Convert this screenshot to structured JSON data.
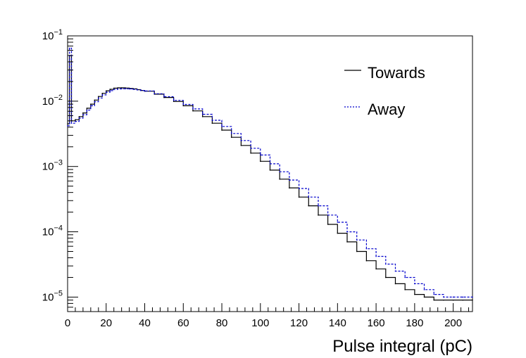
{
  "chart_data": {
    "type": "line",
    "title": "",
    "xlabel": "Pulse integral (pC)",
    "ylabel": "",
    "xlim": [
      0,
      210
    ],
    "ylim": [
      6e-06,
      0.1
    ],
    "yscale": "log",
    "grid": false,
    "legend": "top-right",
    "x_ticks": [
      0,
      20,
      40,
      60,
      80,
      100,
      120,
      140,
      160,
      180,
      200
    ],
    "y_ticks": [
      {
        "value": 1e-05,
        "base": "10",
        "exp": "−5"
      },
      {
        "value": 0.0001,
        "base": "10",
        "exp": "−4"
      },
      {
        "value": 0.001,
        "base": "10",
        "exp": "−3"
      },
      {
        "value": 0.01,
        "base": "10",
        "exp": "−2"
      },
      {
        "value": 0.1,
        "base": "10",
        "exp": "−1"
      }
    ],
    "series": [
      {
        "name": "Towards",
        "color": "#000000",
        "style": "solid",
        "x": [
          0,
          1,
          2,
          4,
          6,
          8,
          10,
          12,
          14,
          16,
          18,
          20,
          22,
          24,
          26,
          28,
          30,
          32,
          34,
          36,
          38,
          40,
          45,
          50,
          55,
          60,
          65,
          70,
          75,
          80,
          85,
          90,
          95,
          100,
          105,
          110,
          115,
          120,
          125,
          130,
          135,
          140,
          145,
          150,
          155,
          160,
          165,
          170,
          175,
          180,
          185,
          190,
          195,
          200,
          205,
          210
        ],
        "y": [
          0.0045,
          0.05,
          0.005,
          0.0052,
          0.0058,
          0.0066,
          0.0078,
          0.009,
          0.0104,
          0.0118,
          0.0132,
          0.0144,
          0.0152,
          0.0158,
          0.016,
          0.016,
          0.0159,
          0.0157,
          0.0154,
          0.015,
          0.0146,
          0.0142,
          0.0128,
          0.0114,
          0.0099,
          0.0085,
          0.0071,
          0.0058,
          0.0046,
          0.0036,
          0.0028,
          0.0021,
          0.0016,
          0.0012,
          0.00088,
          0.00064,
          0.00047,
          0.00034,
          0.00025,
          0.00018,
          0.00013,
          9.5e-05,
          7e-05,
          5e-05,
          3.6e-05,
          2.7e-05,
          2e-05,
          1.6e-05,
          1.3e-05,
          1.1e-05,
          1e-05,
          9e-06,
          9e-06,
          9e-06,
          9e-06,
          9e-06
        ]
      },
      {
        "name": "Away",
        "color": "#0000cc",
        "style": "dashed",
        "x": [
          0,
          1,
          2,
          4,
          6,
          8,
          10,
          12,
          14,
          16,
          18,
          20,
          22,
          24,
          26,
          28,
          30,
          32,
          34,
          36,
          38,
          40,
          45,
          50,
          55,
          60,
          65,
          70,
          75,
          80,
          85,
          90,
          95,
          100,
          105,
          110,
          115,
          120,
          125,
          130,
          135,
          140,
          145,
          150,
          155,
          160,
          165,
          170,
          175,
          180,
          185,
          190,
          195,
          200,
          205,
          210
        ],
        "y": [
          0.0042,
          0.065,
          0.0046,
          0.0049,
          0.0055,
          0.0062,
          0.0073,
          0.0085,
          0.0098,
          0.0112,
          0.0125,
          0.0137,
          0.0145,
          0.0151,
          0.0154,
          0.0155,
          0.0155,
          0.0154,
          0.0152,
          0.0149,
          0.0146,
          0.0143,
          0.013,
          0.0117,
          0.0103,
          0.0089,
          0.0076,
          0.0063,
          0.0051,
          0.0041,
          0.0032,
          0.0025,
          0.0019,
          0.0015,
          0.0011,
          0.00083,
          0.00062,
          0.00046,
          0.00034,
          0.00025,
          0.00018,
          0.00014,
          0.0001,
          7.5e-05,
          5.5e-05,
          4.2e-05,
          3.2e-05,
          2.5e-05,
          2e-05,
          1.6e-05,
          1.3e-05,
          1.1e-05,
          1e-05,
          1e-05,
          1e-05,
          1e-05
        ]
      }
    ]
  }
}
